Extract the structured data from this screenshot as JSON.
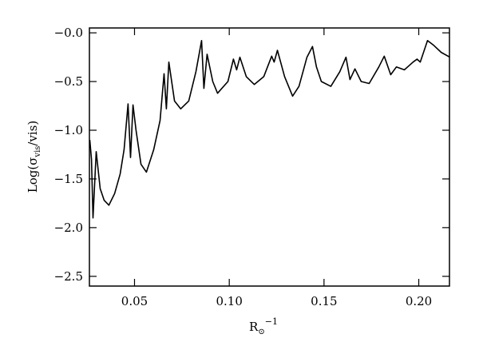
{
  "chart_data": {
    "type": "line",
    "xlabel": [
      "R",
      "⊙",
      "−1"
    ],
    "ylabel": [
      "Log(σ",
      "vis",
      "/vis)"
    ],
    "x": [
      0.0264,
      0.0273,
      0.0281,
      0.0298,
      0.0319,
      0.034,
      0.0365,
      0.0395,
      0.0424,
      0.0445,
      0.0466,
      0.0479,
      0.0492,
      0.0508,
      0.0534,
      0.0563,
      0.0601,
      0.0635,
      0.0656,
      0.0668,
      0.0681,
      0.0711,
      0.0744,
      0.0786,
      0.0824,
      0.0854,
      0.0866,
      0.0883,
      0.0913,
      0.0938,
      0.0993,
      0.1022,
      0.1039,
      0.1056,
      0.109,
      0.1132,
      0.1182,
      0.1224,
      0.1237,
      0.1254,
      0.1292,
      0.1334,
      0.1368,
      0.141,
      0.1439,
      0.146,
      0.1486,
      0.1536,
      0.1583,
      0.1616,
      0.1637,
      0.1663,
      0.1696,
      0.1738,
      0.1789,
      0.1818,
      0.1852,
      0.1882,
      0.1924,
      0.197,
      0.1991,
      0.2008,
      0.2046,
      0.208,
      0.2118,
      0.2164
    ],
    "series": [
      {
        "color": "#000000",
        "values": [
          -1.1,
          -1.3,
          -1.9,
          -1.22,
          -1.6,
          -1.72,
          -1.77,
          -1.65,
          -1.45,
          -1.2,
          -0.73,
          -1.28,
          -0.74,
          -1.0,
          -1.35,
          -1.43,
          -1.2,
          -0.9,
          -0.42,
          -0.78,
          -0.3,
          -0.7,
          -0.78,
          -0.7,
          -0.4,
          -0.08,
          -0.57,
          -0.22,
          -0.5,
          -0.62,
          -0.5,
          -0.27,
          -0.38,
          -0.25,
          -0.45,
          -0.53,
          -0.45,
          -0.24,
          -0.3,
          -0.18,
          -0.45,
          -0.65,
          -0.55,
          -0.25,
          -0.14,
          -0.35,
          -0.5,
          -0.55,
          -0.4,
          -0.25,
          -0.48,
          -0.37,
          -0.5,
          -0.52,
          -0.35,
          -0.24,
          -0.43,
          -0.35,
          -0.38,
          -0.3,
          -0.27,
          -0.3,
          -0.08,
          -0.13,
          -0.2,
          -0.25
        ]
      }
    ],
    "xlim": [
      0.0262,
      0.2162
    ],
    "ylim": [
      -2.6,
      0.05
    ],
    "xticks": [
      0.05,
      {
        "value": 0.1,
        "label": "0.10"
      },
      0.15,
      {
        "value": 0.2,
        "label": "0.20"
      }
    ],
    "yticks": [
      {
        "value": -2.5,
        "label": "−2.5"
      },
      {
        "value": -2.0,
        "label": "−2.0"
      },
      {
        "value": -1.5,
        "label": "−1.5"
      },
      {
        "value": -1.0,
        "label": "−1.0"
      },
      {
        "value": -0.5,
        "label": "−0.5"
      },
      {
        "value": 0,
        "label": "−0.0"
      }
    ]
  }
}
